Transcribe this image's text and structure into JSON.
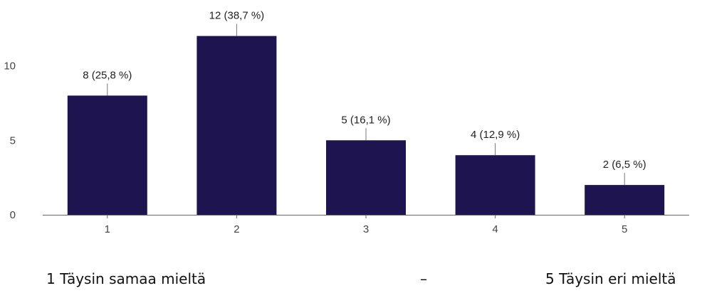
{
  "chart_data": {
    "type": "bar",
    "categories": [
      "1",
      "2",
      "3",
      "4",
      "5"
    ],
    "values": [
      8,
      12,
      5,
      4,
      2
    ],
    "data_labels": [
      "8 (25,8 %)",
      "12 (38,7 %)",
      "5 (16,1 %)",
      "4 (12,9 %)",
      "2 (6,5 %)"
    ],
    "yticks": [
      0,
      5,
      10
    ],
    "ylim": [
      0,
      12.6
    ],
    "grid": false,
    "colors": {
      "bar": "#1e1450",
      "axis": "#666666",
      "connector": "#777777"
    }
  },
  "scale_caption": {
    "left": "1 Täysin samaa mieltä",
    "dash": "–",
    "right": "5 Täysin eri mieltä"
  }
}
